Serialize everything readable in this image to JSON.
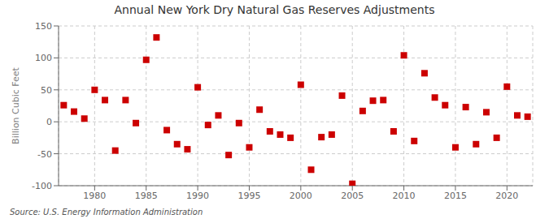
{
  "chart_data": {
    "type": "scatter",
    "title": "Annual New York Dry Natural Gas Reserves Adjustments",
    "ylabel": "Billion Cubic Feet",
    "source": "Source: U.S. Energy Information Administration",
    "color": "#cc0000",
    "marker": "square",
    "grid": true,
    "xlim": [
      1976.5,
      2022.5
    ],
    "ylim": [
      -100,
      150
    ],
    "xticks": [
      1980,
      1985,
      1990,
      1995,
      2000,
      2005,
      2010,
      2015,
      2020
    ],
    "yticks": [
      -100,
      -50,
      0,
      50,
      100,
      150
    ],
    "x": [
      1977,
      1978,
      1979,
      1980,
      1981,
      1982,
      1983,
      1984,
      1985,
      1986,
      1987,
      1988,
      1989,
      1990,
      1991,
      1992,
      1993,
      1994,
      1995,
      1996,
      1997,
      1998,
      1999,
      2000,
      2001,
      2002,
      2003,
      2004,
      2005,
      2006,
      2007,
      2008,
      2009,
      2010,
      2011,
      2012,
      2013,
      2014,
      2015,
      2016,
      2017,
      2018,
      2019,
      2020,
      2021,
      2022
    ],
    "values": [
      26,
      16,
      5,
      50,
      34,
      -45,
      34,
      -2,
      97,
      132,
      -13,
      -35,
      -43,
      54,
      -5,
      10,
      -52,
      -2,
      -40,
      19,
      -15,
      -20,
      -25,
      58,
      -75,
      -24,
      -20,
      41,
      -97,
      17,
      33,
      34,
      -15,
      104,
      -30,
      76,
      38,
      26,
      -40,
      23,
      -35,
      15,
      -25,
      55,
      10,
      8
    ]
  }
}
